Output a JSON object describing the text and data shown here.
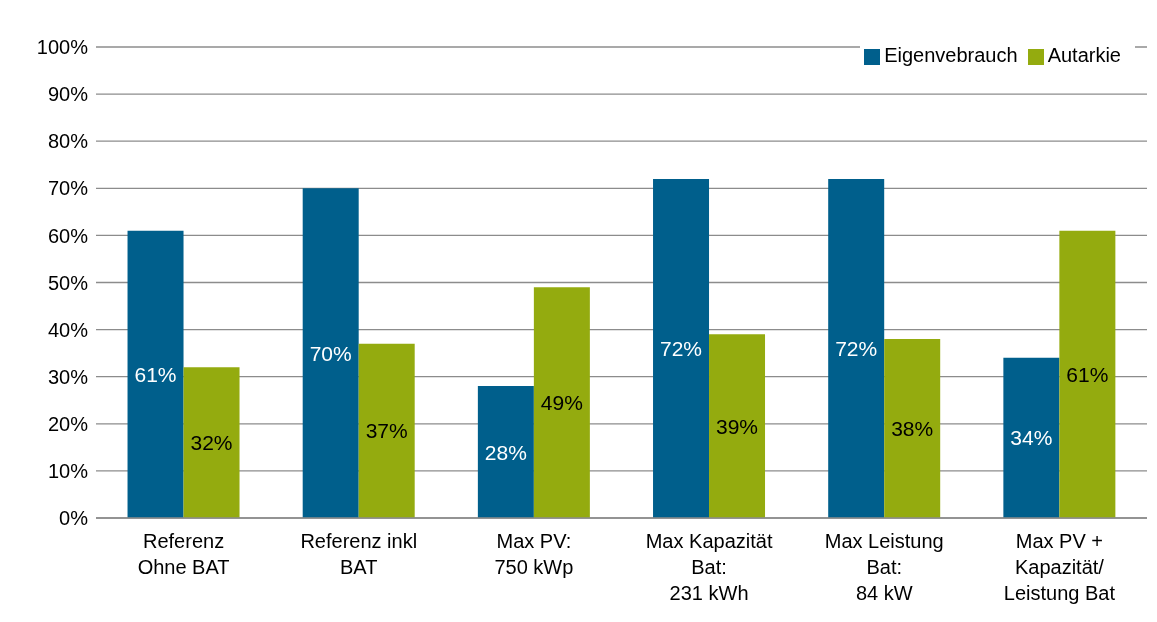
{
  "chart_data": {
    "type": "bar",
    "categories": [
      "Referenz\nOhne BAT",
      "Referenz inkl\nBAT",
      "Max PV:\n750 kWp",
      "Max Kapazität\nBat:\n231 kWh",
      "Max Leistung\nBat:\n84 kW",
      "Max PV +\nKapazität/\nLeistung Bat"
    ],
    "series": [
      {
        "name": "Eigenvebrauch",
        "color": "#005f8c",
        "values": [
          61,
          70,
          28,
          72,
          72,
          34
        ],
        "value_labels": [
          "61%",
          "70%",
          "28%",
          "72%",
          "72%",
          "34%"
        ]
      },
      {
        "name": "Autarkie",
        "color": "#94ab0f",
        "values": [
          32,
          37,
          49,
          39,
          38,
          61
        ],
        "value_labels": [
          "32%",
          "37%",
          "49%",
          "39%",
          "38%",
          "61%"
        ]
      }
    ],
    "ylim": [
      0,
      100
    ],
    "yticks": [
      {
        "value": 0,
        "label": "0%"
      },
      {
        "value": 10,
        "label": "10%"
      },
      {
        "value": 20,
        "label": "20%"
      },
      {
        "value": 30,
        "label": "30%"
      },
      {
        "value": 40,
        "label": "40%"
      },
      {
        "value": 50,
        "label": "50%"
      },
      {
        "value": 60,
        "label": "60%"
      },
      {
        "value": 70,
        "label": "70%"
      },
      {
        "value": 80,
        "label": "80%"
      },
      {
        "value": 90,
        "label": "90%"
      },
      {
        "value": 100,
        "label": "100%"
      }
    ],
    "grid": "y",
    "legend": "top right"
  }
}
